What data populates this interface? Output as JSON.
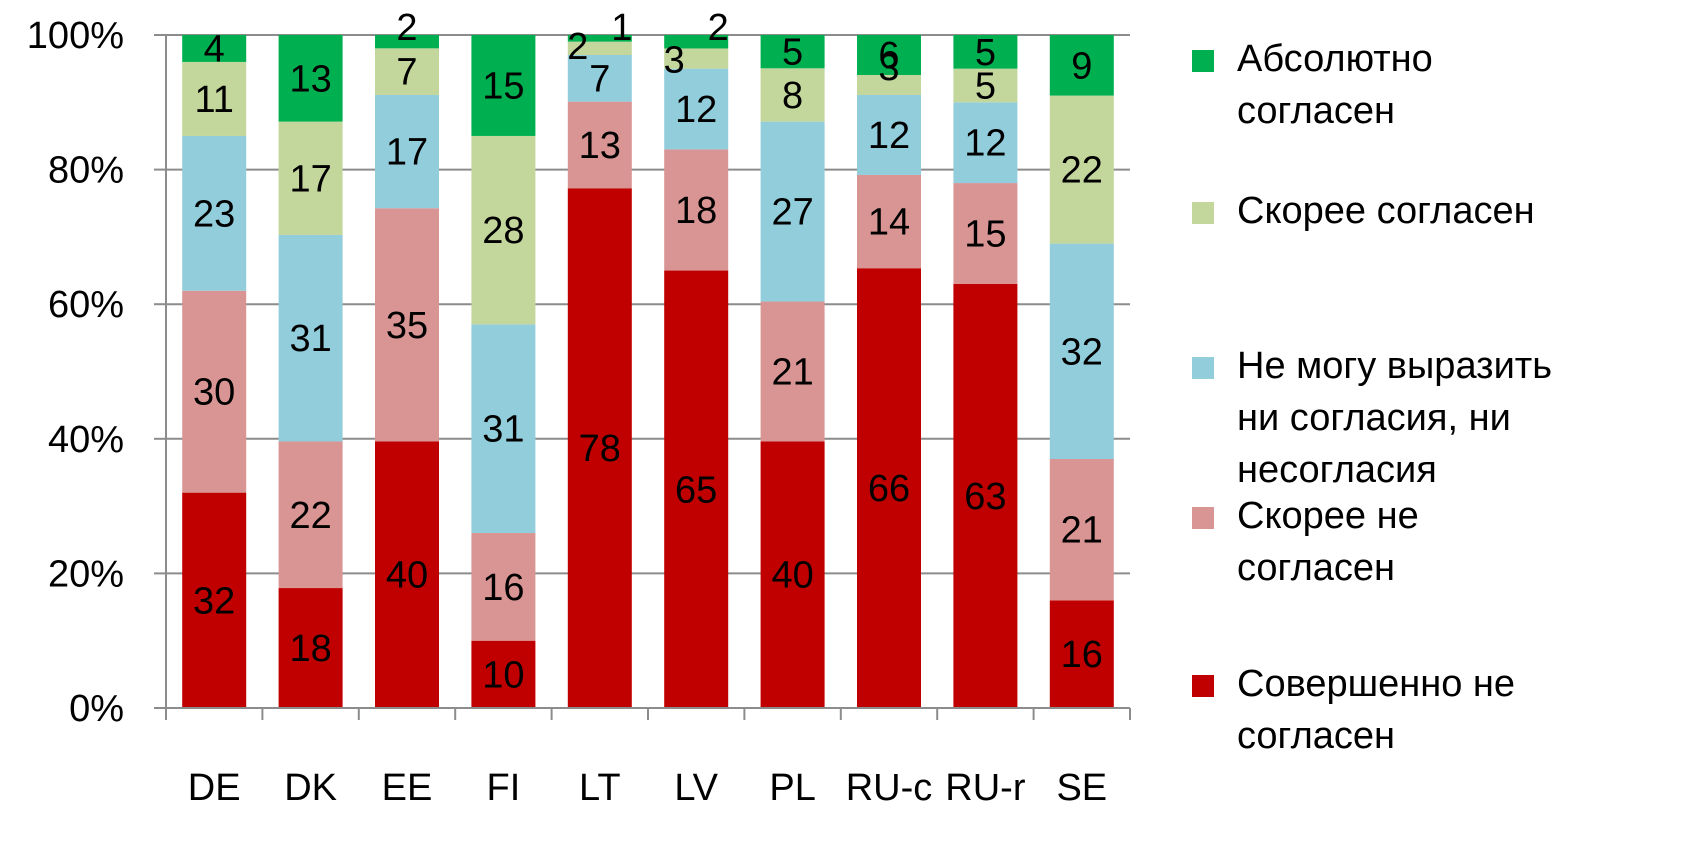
{
  "chart_data": {
    "type": "bar",
    "stacked": true,
    "percent_stacked": true,
    "categories": [
      "DE",
      "DK",
      "EE",
      "FI",
      "LT",
      "LV",
      "PL",
      "RU-c",
      "RU-r",
      "SE"
    ],
    "y_ticks": [
      "0%",
      "20%",
      "40%",
      "60%",
      "80%",
      "100%"
    ],
    "ylim": [
      0,
      100
    ],
    "grid": true,
    "legend_position": "right",
    "series": [
      {
        "name": "Совершенно не согласен",
        "name_lines": [
          "Совершенно не",
          "согласен"
        ],
        "color": "#C00000",
        "values": [
          32,
          18,
          40,
          10,
          78,
          65,
          40,
          66,
          63,
          16
        ]
      },
      {
        "name": "Скорее не согласен",
        "name_lines": [
          "Скорее не",
          "согласен"
        ],
        "color": "#D99594",
        "values": [
          30,
          22,
          35,
          16,
          13,
          18,
          21,
          14,
          15,
          21
        ]
      },
      {
        "name": "Не могу выразить ни согласия, ни несогласия",
        "name_lines": [
          "Не могу выразить",
          "ни согласия, ни",
          "несогласия"
        ],
        "color": "#92CDDC",
        "values": [
          23,
          31,
          17,
          31,
          7,
          12,
          27,
          12,
          12,
          32
        ]
      },
      {
        "name": "Скорее согласен",
        "name_lines": [
          "Скорее согласен"
        ],
        "color": "#C3D69B",
        "values": [
          11,
          17,
          7,
          28,
          2,
          3,
          8,
          3,
          5,
          22
        ]
      },
      {
        "name": "Абсолютно согласен",
        "name_lines": [
          "Абсолютно",
          "согласен"
        ],
        "color": "#00B050",
        "values": [
          4,
          13,
          2,
          15,
          1,
          2,
          5,
          6,
          5,
          9
        ]
      }
    ]
  }
}
